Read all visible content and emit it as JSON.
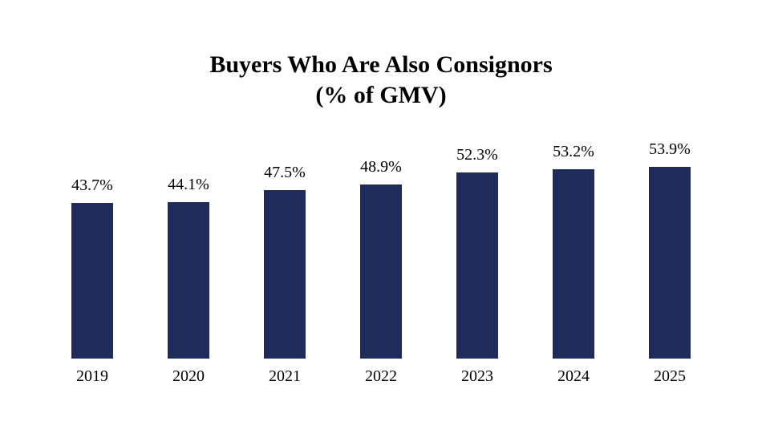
{
  "chart_data": {
    "type": "bar",
    "title": "Buyers Who Are Also Consignors",
    "subtitle": "(% of GMV)",
    "categories": [
      "2019",
      "2020",
      "2021",
      "2022",
      "2023",
      "2024",
      "2025"
    ],
    "values": [
      43.7,
      44.1,
      47.5,
      48.9,
      52.3,
      53.2,
      53.9
    ],
    "value_labels": [
      "43.7%",
      "44.1%",
      "47.5%",
      "48.9%",
      "52.3%",
      "53.2%",
      "53.9%"
    ],
    "bar_color": "#1f2c5a",
    "xlabel": "",
    "ylabel": "",
    "ylim": [
      0,
      60
    ],
    "grid": false,
    "legend": false
  }
}
